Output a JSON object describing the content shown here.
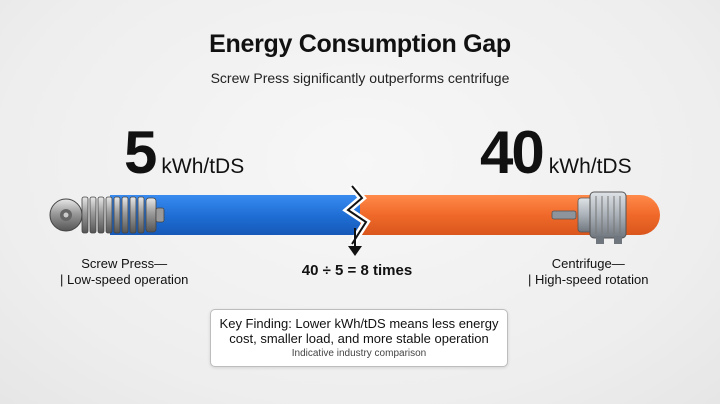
{
  "header": {
    "title": "Energy Consumption Gap",
    "subtitle": "Screw Press significantly outperforms centrifuge"
  },
  "screw_press": {
    "value": "5",
    "unit": "kWh/tDS",
    "caption_line1": "Screw Press—",
    "caption_line2": "| Low-speed operation"
  },
  "centrifuge": {
    "value": "40",
    "unit": "kWh/tDS",
    "caption_line1": "Centrifuge—",
    "caption_line2": "| High-speed rotation"
  },
  "ratio_text": "40 ÷ 5 = 8 times",
  "finding": {
    "text": "Key Finding: Lower kWh/tDS means less energy cost, smaller load, and more stable operation",
    "note": "Indicative industry comparison"
  },
  "colors": {
    "screw_bar": "#1f6fd6",
    "centrifuge_bar": "#f0692a"
  },
  "icons": [
    "screw-press-icon",
    "centrifuge-icon",
    "break-arrow-icon"
  ]
}
